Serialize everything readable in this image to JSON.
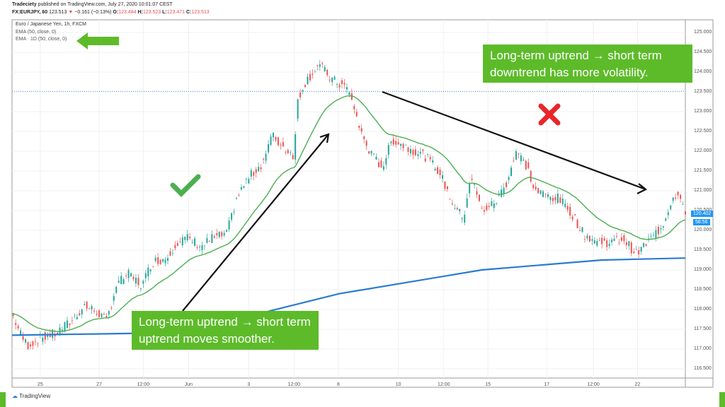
{
  "header": {
    "line1_author": "Tradeciety",
    "line1_rest": "published on TradingView.com, July 27, 2020 10:01:07 CEST",
    "symbol": "FX:EURJPY, 60",
    "last": "123.513",
    "change": "−0.161 (−0.13%)",
    "o_label": "O:",
    "o": "123.484",
    "h_label": "H:",
    "h": "123.523",
    "l_label": "L:",
    "l": "123.471",
    "c_label": "C:",
    "c": "123.513"
  },
  "legend": {
    "title": "Euro / Japanese Yen, 1h, FXCM",
    "ema1": "EMA (50, close, 0)",
    "ema2": "EMA · 1D (50, close, 0)"
  },
  "annotations": {
    "top_note": "Long-term uptrend → short term downtrend has more volatility.",
    "bottom_note": "Long-term uptrend → short term uptrend moves smoother.",
    "check_icon": "check-icon",
    "cross_icon": "x-icon"
  },
  "price_tags": {
    "price": "120.402",
    "countdown": "58:56"
  },
  "footer": {
    "brand": "TradingView"
  },
  "colors": {
    "up": "#26a69a",
    "down": "#ef5350",
    "ema50": "#4caf50",
    "ema1d": "#2a7ad2",
    "note_bg": "#5dbb2a",
    "cross": "#e8262a",
    "tag": "#2196f3"
  },
  "chart_data": {
    "type": "candlestick",
    "title": "Euro / Japanese Yen, 1h, FXCM",
    "ylim": [
      116.25,
      125.3
    ],
    "yticks": [
      "125.000",
      "124.500",
      "124.000",
      "123.500",
      "123.000",
      "122.500",
      "122.000",
      "121.500",
      "121.000",
      "120.500",
      "120.000",
      "119.500",
      "119.000",
      "118.500",
      "118.000",
      "117.500",
      "117.000",
      "116.500"
    ],
    "xticks": [
      {
        "bar": 23,
        "label": "25"
      },
      {
        "bar": 71,
        "label": "27"
      },
      {
        "bar": 107,
        "label": "12:00"
      },
      {
        "bar": 144,
        "label": "Jun"
      },
      {
        "bar": 193,
        "label": "3"
      },
      {
        "bar": 230,
        "label": "12:00"
      },
      {
        "bar": 266,
        "label": "8"
      },
      {
        "bar": 315,
        "label": "10"
      },
      {
        "bar": 352,
        "label": "12:00"
      },
      {
        "bar": 388,
        "label": "15"
      },
      {
        "bar": 436,
        "label": "17"
      },
      {
        "bar": 474,
        "label": "12:00"
      },
      {
        "bar": 510,
        "label": "22"
      }
    ],
    "bars_total": 550,
    "price_path": [
      [
        0,
        117.9
      ],
      [
        8,
        117.3
      ],
      [
        13,
        117.1
      ],
      [
        25,
        117.3
      ],
      [
        36,
        117.4
      ],
      [
        48,
        117.7
      ],
      [
        59,
        118.1
      ],
      [
        71,
        117.9
      ],
      [
        77,
        117.7
      ],
      [
        85,
        118.6
      ],
      [
        94,
        118.9
      ],
      [
        106,
        118.6
      ],
      [
        114,
        119.2
      ],
      [
        126,
        119.3
      ],
      [
        134,
        119.7
      ],
      [
        143,
        119.8
      ],
      [
        155,
        119.6
      ],
      [
        163,
        119.8
      ],
      [
        175,
        119.9
      ],
      [
        183,
        120.8
      ],
      [
        192,
        121.3
      ],
      [
        204,
        121.7
      ],
      [
        212,
        122.4
      ],
      [
        221,
        122.1
      ],
      [
        230,
        121.9
      ],
      [
        233,
        123.3
      ],
      [
        238,
        123.7
      ],
      [
        250,
        124.2
      ],
      [
        261,
        123.8
      ],
      [
        273,
        123.6
      ],
      [
        279,
        123.1
      ],
      [
        284,
        122.5
      ],
      [
        293,
        121.9
      ],
      [
        302,
        121.6
      ],
      [
        310,
        122.3
      ],
      [
        322,
        122.1
      ],
      [
        336,
        121.9
      ],
      [
        348,
        121.5
      ],
      [
        359,
        120.7
      ],
      [
        368,
        120.3
      ],
      [
        374,
        121.4
      ],
      [
        383,
        120.5
      ],
      [
        394,
        120.7
      ],
      [
        403,
        121.2
      ],
      [
        411,
        122.0
      ],
      [
        420,
        121.6
      ],
      [
        426,
        121.0
      ],
      [
        434,
        120.9
      ],
      [
        446,
        120.8
      ],
      [
        457,
        120.4
      ],
      [
        466,
        119.9
      ],
      [
        478,
        119.7
      ],
      [
        489,
        119.7
      ],
      [
        498,
        119.8
      ],
      [
        509,
        119.4
      ],
      [
        518,
        119.7
      ],
      [
        530,
        120.1
      ],
      [
        538,
        120.8
      ],
      [
        544,
        121.0
      ],
      [
        549,
        120.4
      ]
    ],
    "ema_1d": [
      [
        0,
        117.35
      ],
      [
        106,
        117.4
      ],
      [
        163,
        117.6
      ],
      [
        267,
        118.4
      ],
      [
        383,
        119.0
      ],
      [
        481,
        119.25
      ],
      [
        549,
        119.3
      ]
    ],
    "hline": 123.513
  }
}
